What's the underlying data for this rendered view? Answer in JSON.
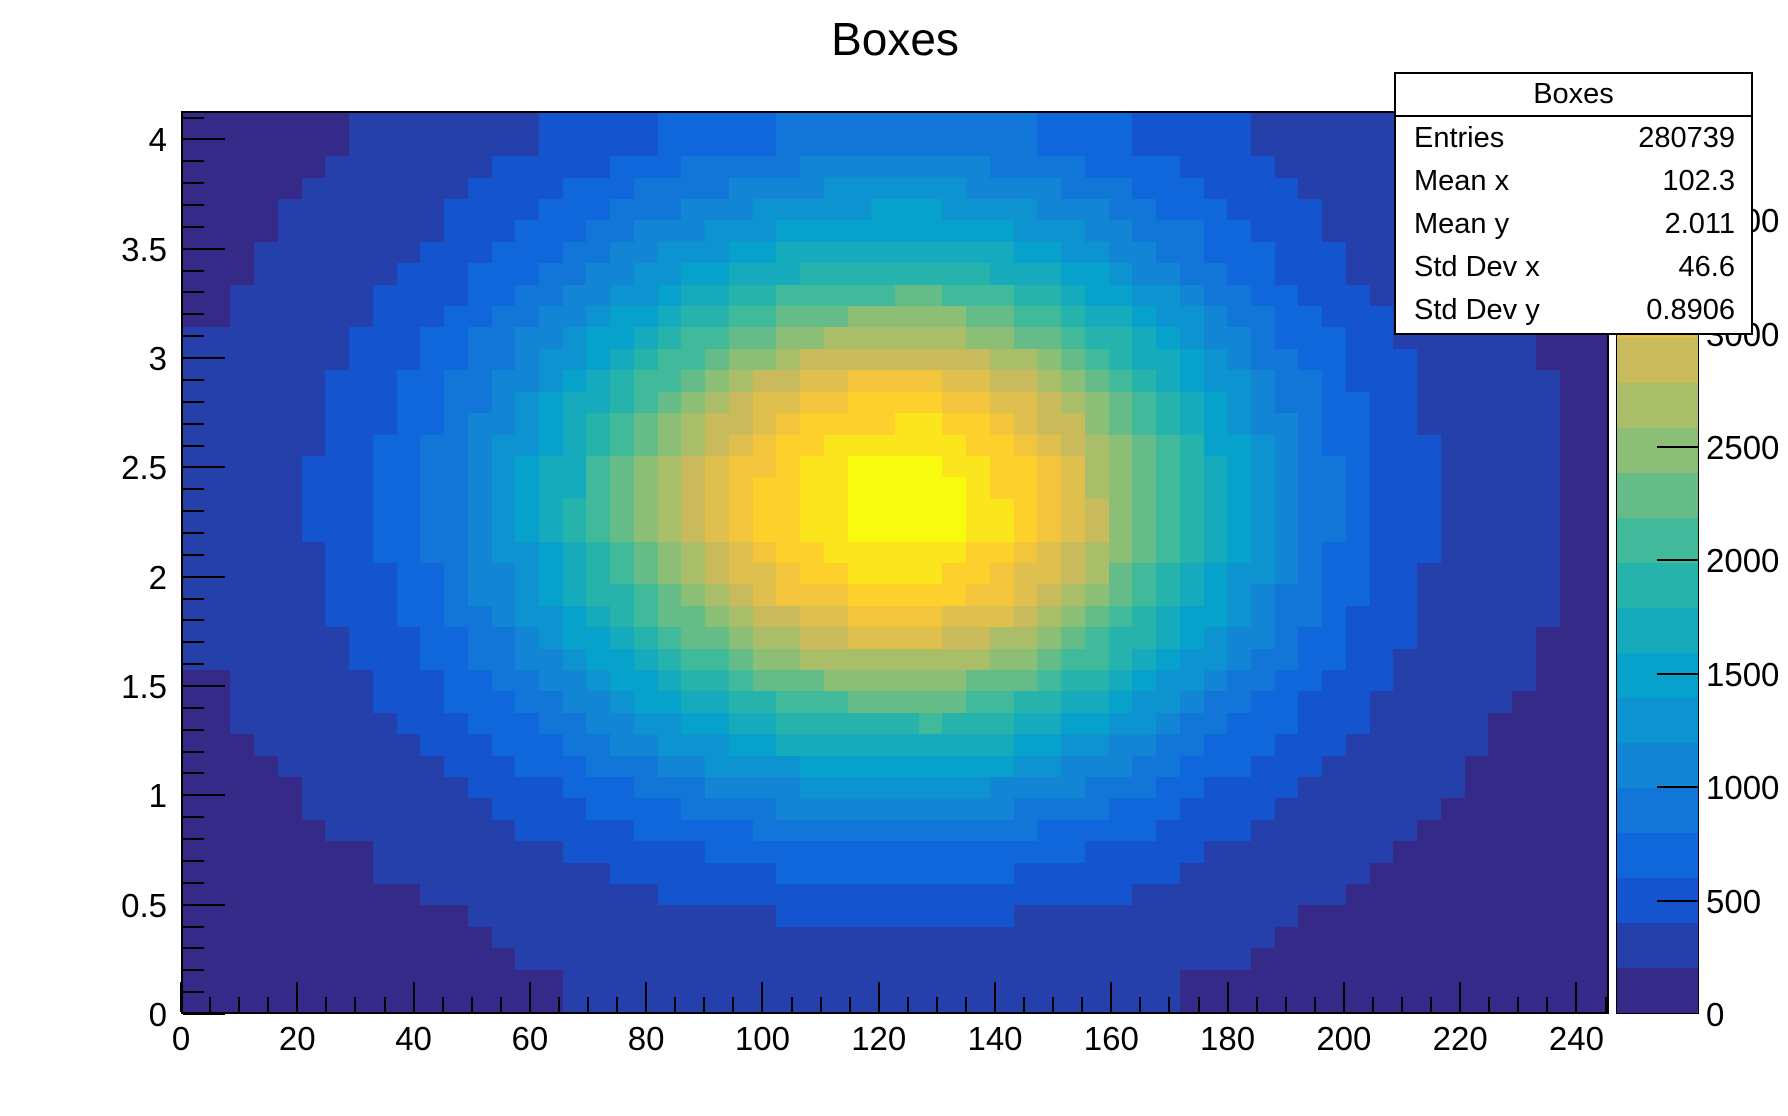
{
  "title": "Boxes",
  "stats": {
    "title": "Boxes",
    "rows": [
      {
        "label": "Entries",
        "value": "280739"
      },
      {
        "label": "Mean x",
        "value": "102.3"
      },
      {
        "label": "Mean y",
        "value": "2.011"
      },
      {
        "label": "Std Dev x",
        "value": "46.6"
      },
      {
        "label": "Std Dev y",
        "value": "0.8906"
      }
    ]
  },
  "colors": {
    "background": "#ffffff",
    "frame_border": "#000000",
    "text": "#000000"
  },
  "chart_data": {
    "type": "heatmap",
    "title": "Boxes",
    "xlabel": "",
    "ylabel": "",
    "xlim": [
      0,
      245.6
    ],
    "ylim": [
      0,
      4.13
    ],
    "zlim": [
      0,
      3982
    ],
    "grid": false,
    "legend_position": "right-colorbar",
    "x_ticks_major": [
      0,
      20,
      40,
      60,
      80,
      100,
      120,
      140,
      160,
      180,
      200,
      220,
      240
    ],
    "x_minor_step": 5,
    "y_ticks_major": [
      0,
      0.5,
      1,
      1.5,
      2,
      2.5,
      3,
      3.5,
      4
    ],
    "y_minor_step": 0.1,
    "colorbar": {
      "ticks": [
        0,
        500,
        1000,
        1500,
        2000,
        2500,
        3000,
        3500
      ],
      "levels": 20
    },
    "palette_name": "root-bird",
    "palette_stops": [
      "#352a87",
      "#0f5cdd",
      "#1481d6",
      "#06a4ca",
      "#2eb7a4",
      "#87bf77",
      "#d1bb59",
      "#fec832",
      "#f9fb0e"
    ],
    "x_centers": [
      6.1,
      18.4,
      30.7,
      43.0,
      55.3,
      67.5,
      79.8,
      92.1,
      104.4,
      116.6,
      128.9,
      141.2,
      153.5,
      165.8,
      178.0,
      190.3,
      202.6,
      214.9,
      227.1,
      239.4
    ],
    "y_centers": [
      0.15,
      0.44,
      0.74,
      1.03,
      1.33,
      1.62,
      1.92,
      2.21,
      2.51,
      2.8,
      3.1,
      3.39,
      3.69,
      3.98
    ],
    "values_rows_bottom_to_top": [
      [
        134,
        138,
        145,
        158,
        176,
        202,
        228,
        252,
        268,
        278,
        280,
        268,
        244,
        215,
        188,
        165,
        150,
        140,
        135,
        132
      ],
      [
        139,
        147,
        162,
        187,
        221,
        265,
        316,
        367,
        409,
        434,
        436,
        411,
        365,
        308,
        254,
        208,
        175,
        153,
        141,
        135
      ],
      [
        148,
        166,
        198,
        248,
        320,
        412,
        518,
        624,
        712,
        764,
        768,
        716,
        620,
        502,
        388,
        293,
        223,
        179,
        153,
        140
      ],
      [
        162,
        195,
        251,
        341,
        470,
        635,
        825,
        1015,
        1172,
        1265,
        1272,
        1179,
        1007,
        797,
        593,
        421,
        297,
        217,
        172,
        148
      ],
      [
        182,
        235,
        328,
        474,
        684,
        952,
        1262,
        1572,
        1828,
        1979,
        1991,
        1839,
        1558,
        1216,
        884,
        605,
        402,
        272,
        198,
        159
      ],
      [
        203,
        279,
        411,
        618,
        916,
        1297,
        1736,
        2175,
        2539,
        2753,
        2770,
        2555,
        2156,
        1671,
        1199,
        803,
        516,
        331,
        226,
        171
      ],
      [
        224,
        320,
        487,
        752,
        1131,
        1616,
        2176,
        2735,
        3198,
        3470,
        3493,
        3219,
        2711,
        2092,
        1492,
        988,
        621,
        386,
        252,
        183
      ],
      [
        235,
        343,
        531,
        828,
        1253,
        1797,
        2424,
        3051,
        3571,
        3877,
        3902,
        3594,
        3025,
        2331,
        1658,
        1092,
        681,
        417,
        267,
        189
      ],
      [
        234,
        342,
        529,
        824,
        1247,
        1788,
        2413,
        3037,
        3554,
        3858,
        3883,
        3577,
        3010,
        2320,
        1650,
        1087,
        678,
        416,
        266,
        189
      ],
      [
        222,
        318,
        483,
        744,
        1119,
        1598,
        2150,
        2702,
        3160,
        3429,
        3451,
        3181,
        2679,
        2068,
        1475,
        977,
        615,
        383,
        251,
        182
      ],
      [
        202,
        276,
        405,
        609,
        901,
        1275,
        1706,
        2137,
        2494,
        2704,
        2721,
        2510,
        2118,
        1642,
        1179,
        791,
        508,
        327,
        224,
        171
      ],
      [
        180,
        232,
        322,
        464,
        668,
        929,
        1230,
        1530,
        1779,
        1926,
        1938,
        1790,
        1517,
        1185,
        862,
        591,
        394,
        268,
        196,
        158
      ],
      [
        165,
        201,
        265,
        365,
        508,
        691,
        903,
        1114,
        1289,
        1392,
        1401,
        1298,
        1105,
        872,
        644,
        454,
        315,
        227,
        176,
        150
      ],
      [
        150,
        172,
        210,
        268,
        355,
        465,
        595,
        725,
        832,
        895,
        900,
        838,
        720,
        577,
        440,
        325,
        242,
        190,
        158,
        143
      ]
    ]
  }
}
